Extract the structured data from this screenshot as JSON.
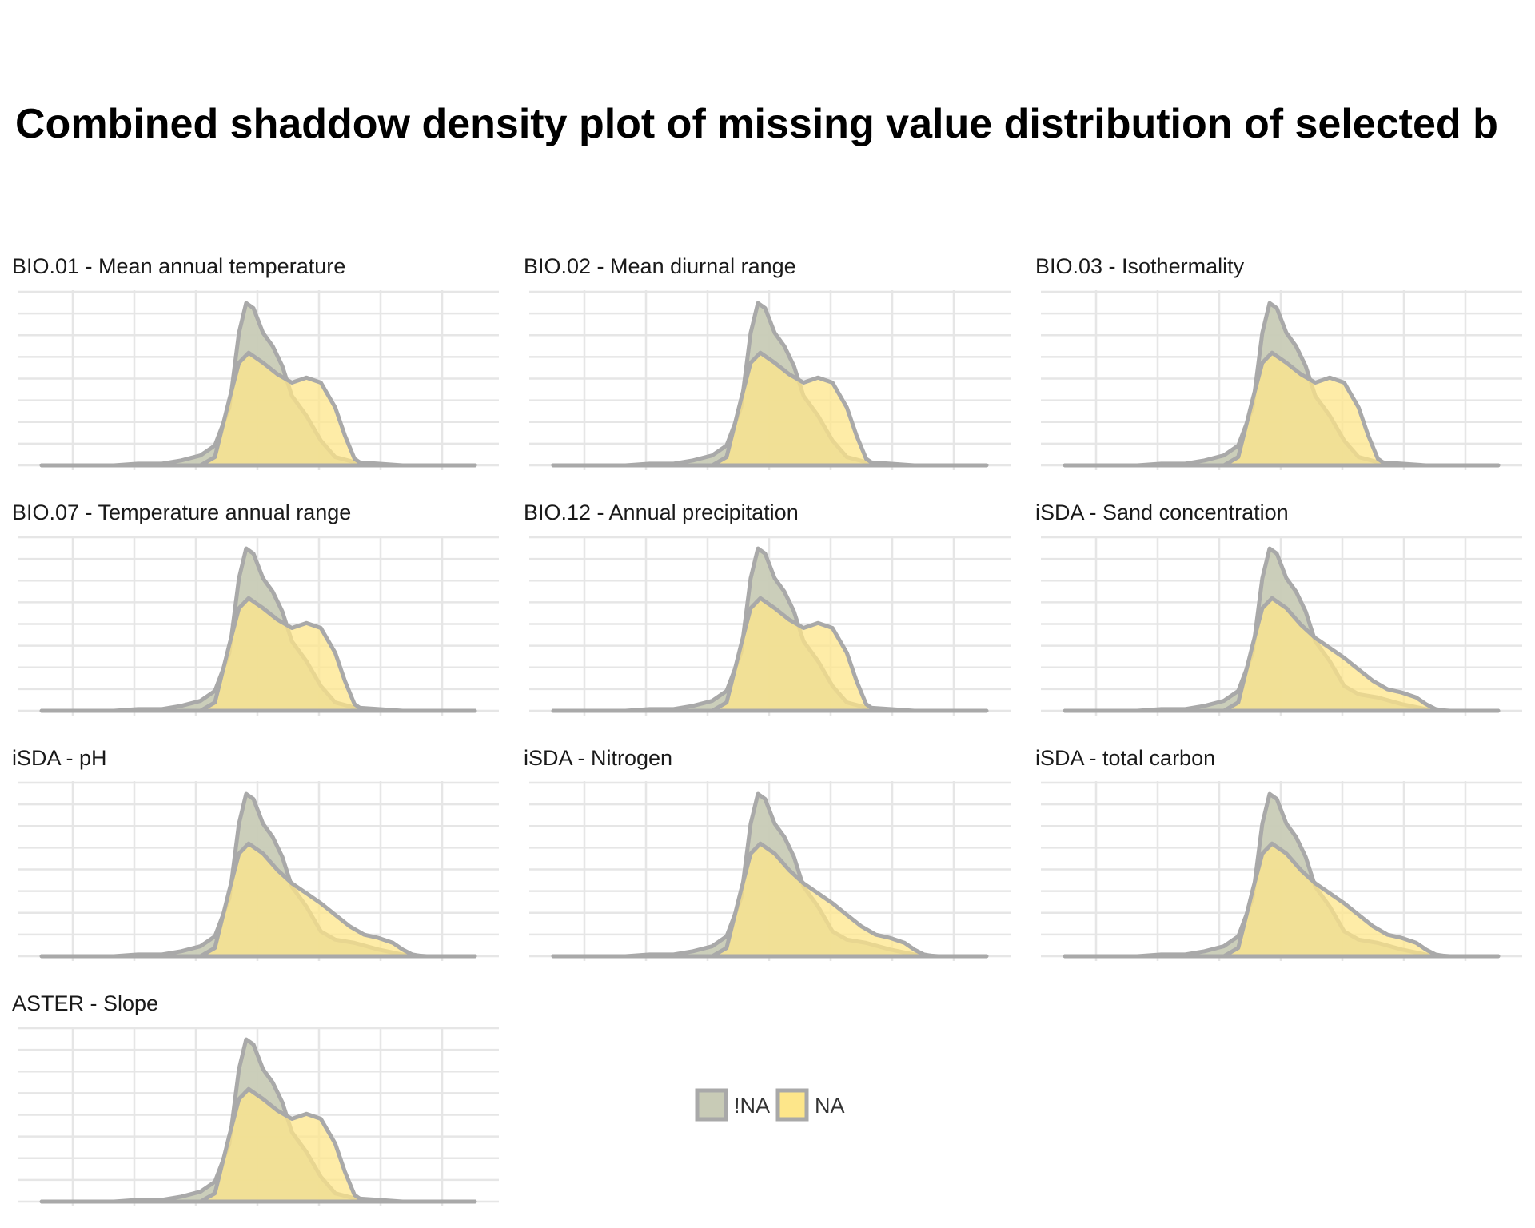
{
  "chart_data": {
    "type": "area",
    "title": "Combined shaddow density plot of missing value distribution of selected b",
    "colors": {
      "notNA": "#c8cbb6",
      "NA": "#fde68a",
      "outline": "#a9a9a9",
      "grid": "#e6e6e6"
    },
    "legend": {
      "placement": "bottom-center",
      "entries": [
        "!NA",
        "NA"
      ]
    },
    "grid": true,
    "xlim": [
      0,
      1
    ],
    "ylim": [
      0,
      1
    ],
    "shapes": {
      "bimodal": {
        "notNA": [
          [
            0.05,
            0.0
          ],
          [
            0.2,
            0.0
          ],
          [
            0.25,
            0.01
          ],
          [
            0.3,
            0.01
          ],
          [
            0.34,
            0.03
          ],
          [
            0.38,
            0.06
          ],
          [
            0.41,
            0.12
          ],
          [
            0.44,
            0.35
          ],
          [
            0.46,
            0.8
          ],
          [
            0.475,
            0.98
          ],
          [
            0.49,
            0.95
          ],
          [
            0.51,
            0.8
          ],
          [
            0.53,
            0.72
          ],
          [
            0.55,
            0.6
          ],
          [
            0.57,
            0.42
          ],
          [
            0.6,
            0.3
          ],
          [
            0.63,
            0.15
          ],
          [
            0.66,
            0.05
          ],
          [
            0.7,
            0.02
          ],
          [
            0.75,
            0.01
          ],
          [
            0.8,
            0.0
          ],
          [
            0.95,
            0.0
          ]
        ],
        "NA": [
          [
            0.05,
            0.0
          ],
          [
            0.38,
            0.0
          ],
          [
            0.41,
            0.05
          ],
          [
            0.44,
            0.4
          ],
          [
            0.46,
            0.62
          ],
          [
            0.48,
            0.68
          ],
          [
            0.51,
            0.62
          ],
          [
            0.54,
            0.55
          ],
          [
            0.57,
            0.5
          ],
          [
            0.6,
            0.53
          ],
          [
            0.63,
            0.5
          ],
          [
            0.66,
            0.35
          ],
          [
            0.68,
            0.18
          ],
          [
            0.7,
            0.04
          ],
          [
            0.72,
            0.0
          ],
          [
            0.95,
            0.0
          ]
        ]
      },
      "skewed": {
        "notNA": [
          [
            0.05,
            0.0
          ],
          [
            0.2,
            0.0
          ],
          [
            0.25,
            0.01
          ],
          [
            0.3,
            0.01
          ],
          [
            0.34,
            0.03
          ],
          [
            0.38,
            0.06
          ],
          [
            0.41,
            0.12
          ],
          [
            0.44,
            0.35
          ],
          [
            0.46,
            0.8
          ],
          [
            0.475,
            0.98
          ],
          [
            0.49,
            0.95
          ],
          [
            0.51,
            0.8
          ],
          [
            0.53,
            0.72
          ],
          [
            0.55,
            0.6
          ],
          [
            0.57,
            0.42
          ],
          [
            0.6,
            0.3
          ],
          [
            0.63,
            0.15
          ],
          [
            0.66,
            0.1
          ],
          [
            0.7,
            0.08
          ],
          [
            0.75,
            0.04
          ],
          [
            0.8,
            0.01
          ],
          [
            0.85,
            0.0
          ],
          [
            0.95,
            0.0
          ]
        ],
        "NA": [
          [
            0.05,
            0.0
          ],
          [
            0.38,
            0.0
          ],
          [
            0.41,
            0.05
          ],
          [
            0.44,
            0.4
          ],
          [
            0.46,
            0.62
          ],
          [
            0.48,
            0.68
          ],
          [
            0.51,
            0.62
          ],
          [
            0.54,
            0.52
          ],
          [
            0.57,
            0.44
          ],
          [
            0.6,
            0.38
          ],
          [
            0.63,
            0.32
          ],
          [
            0.66,
            0.25
          ],
          [
            0.69,
            0.18
          ],
          [
            0.72,
            0.13
          ],
          [
            0.75,
            0.11
          ],
          [
            0.78,
            0.08
          ],
          [
            0.8,
            0.04
          ],
          [
            0.82,
            0.01
          ],
          [
            0.84,
            0.0
          ],
          [
            0.95,
            0.0
          ]
        ]
      }
    },
    "panels": [
      {
        "label": "BIO.01 - Mean annual temperature",
        "shape": "bimodal"
      },
      {
        "label": "BIO.02 - Mean diurnal range",
        "shape": "bimodal"
      },
      {
        "label": "BIO.03 - Isothermality",
        "shape": "bimodal"
      },
      {
        "label": "BIO.07 - Temperature annual range",
        "shape": "bimodal"
      },
      {
        "label": "BIO.12 - Annual precipitation",
        "shape": "bimodal"
      },
      {
        "label": "iSDA - Sand concentration",
        "shape": "skewed"
      },
      {
        "label": "iSDA - pH",
        "shape": "skewed"
      },
      {
        "label": "iSDA - Nitrogen",
        "shape": "skewed"
      },
      {
        "label": "iSDA - total carbon",
        "shape": "skewed"
      },
      {
        "label": "ASTER - Slope",
        "shape": "bimodal"
      }
    ]
  }
}
